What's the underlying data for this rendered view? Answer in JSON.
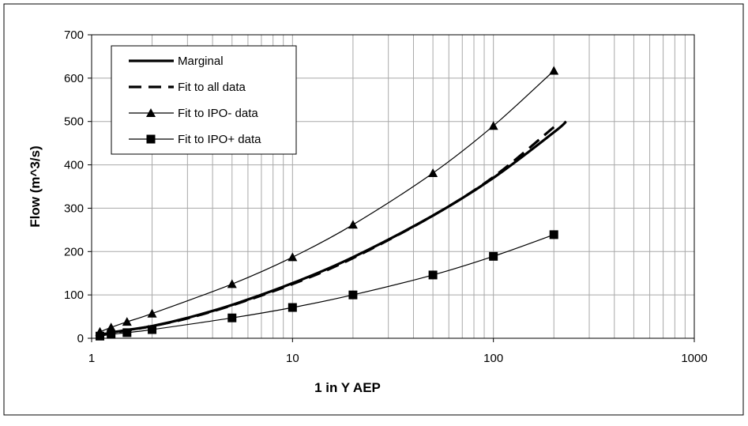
{
  "chart_data": {
    "type": "line",
    "title": "",
    "xlabel": "1 in Y AEP",
    "ylabel": "Flow (m^3/s)",
    "xscale": "log",
    "xlim": [
      1,
      1000
    ],
    "ylim": [
      0,
      700
    ],
    "x_ticks": [
      "1",
      "10",
      "100",
      "1000"
    ],
    "y_ticks": [
      "0",
      "100",
      "200",
      "300",
      "400",
      "500",
      "600",
      "700"
    ],
    "grid": {
      "x_major": true,
      "x_minor": true,
      "y_major": true
    },
    "legend": {
      "placement": "top-left"
    },
    "series": [
      {
        "name": "Marginal",
        "style": "thick-solid",
        "marker": "none",
        "color": "#000000",
        "x": [
          1.1,
          1.25,
          1.5,
          2,
          3,
          5,
          10,
          20,
          50,
          100,
          200,
          230
        ],
        "y": [
          8,
          13,
          19,
          28,
          47,
          77,
          127,
          187,
          283,
          370,
          475,
          500
        ]
      },
      {
        "name": "Fit to all data",
        "style": "thick-dashed",
        "marker": "none",
        "color": "#000000",
        "x": [
          1.1,
          1.25,
          1.5,
          2,
          3,
          5,
          10,
          20,
          50,
          100,
          200
        ],
        "y": [
          7,
          12,
          18,
          28,
          46,
          76,
          125,
          185,
          283,
          372,
          487
        ]
      },
      {
        "name": "Fit to IPO- data",
        "style": "thin-solid",
        "marker": "triangle",
        "color": "#000000",
        "x": [
          1.1,
          1.25,
          1.5,
          2,
          5,
          10,
          20,
          50,
          100,
          200
        ],
        "y": [
          15,
          25,
          38,
          57,
          125,
          187,
          262,
          381,
          490,
          617
        ]
      },
      {
        "name": "Fit to IPO+ data",
        "style": "thin-solid",
        "marker": "square",
        "color": "#000000",
        "x": [
          1.1,
          1.25,
          1.5,
          2,
          5,
          10,
          20,
          50,
          100,
          200
        ],
        "y": [
          5,
          9,
          13,
          20,
          47,
          71,
          100,
          146,
          189,
          239
        ]
      }
    ]
  }
}
